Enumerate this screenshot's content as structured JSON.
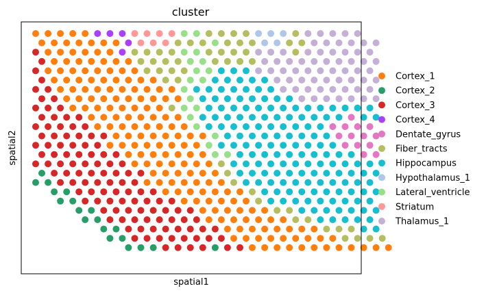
{
  "chart_data": {
    "type": "scatter",
    "title": "cluster",
    "xlabel": "spatial1",
    "ylabel": "spatial2",
    "ticks": false,
    "grid": false,
    "legend_placement": "right",
    "categories": [
      {
        "name": "Cortex_1",
        "color": "#ff7f0e"
      },
      {
        "name": "Cortex_2",
        "color": "#279e68"
      },
      {
        "name": "Cortex_3",
        "color": "#d62728"
      },
      {
        "name": "Cortex_4",
        "color": "#aa40fc"
      },
      {
        "name": "Dentate_gyrus",
        "color": "#e377c2"
      },
      {
        "name": "Fiber_tracts",
        "color": "#b5bd61"
      },
      {
        "name": "Hippocampus",
        "color": "#17becf"
      },
      {
        "name": "Hypothalamus_1",
        "color": "#aec7e8"
      },
      {
        "name": "Lateral_ventricle",
        "color": "#98df8a"
      },
      {
        "name": "Striatum",
        "color": "#ff9896"
      },
      {
        "name": "Thalamus_1",
        "color": "#c5b0d5"
      }
    ],
    "row_column_range": [
      0,
      25
    ],
    "rows": [
      {
        "row": 0,
        "col_start": 0,
        "labels": "AAAAADDDJJJJIIFFFFHHHFKKKKK"
      },
      {
        "row": 1,
        "col_start": 0,
        "labels": "AAAAAAADJJJFFFIFFFHHFFKKKKKK"
      },
      {
        "row": 2,
        "col_start": 0,
        "labels": "CAAAAAADFFFFIIFFFFKKKFKKKKKK"
      },
      {
        "row": 3,
        "col_start": 0,
        "labels": "CAAAAAAAFFFFIIFFFFKKKKKKKKKK"
      },
      {
        "row": 4,
        "col_start": 0,
        "labels": "CAAAAAAAAFFFFIIGGGKKKKKKKKKK"
      },
      {
        "row": 5,
        "col_start": 0,
        "labels": "CAAAAAAAAAFFIIGGGGGKKKKKKKKK"
      },
      {
        "row": 6,
        "col_start": 0,
        "labels": "CCAAAAAAAAAAIGGGGGGGKKKKKKKK"
      },
      {
        "row": 7,
        "col_start": 0,
        "labels": "CCAAAAAAAAAAIGGGGGGGGKKKKKKK"
      },
      {
        "row": 8,
        "col_start": 0,
        "labels": "CCCAAAAAAAAFIIGGGGGGGGGGGGGG"
      },
      {
        "row": 9,
        "col_start": 0,
        "labels": "CCCCAAAAAAAAIGGGGGGGGGGGGEGG"
      },
      {
        "row": 10,
        "col_start": 0,
        "labels": "CCCCCAAAAAAAAIGGGGGGGGGGEEEE"
      },
      {
        "row": 11,
        "col_start": 0,
        "labels": "CCCCCCAAAAAAAAIGGGGGGGGGEEEE"
      },
      {
        "row": 12,
        "col_start": 0,
        "labels": "CCCCCCAAAAAAAAIGGGGGGGGGGEEE"
      },
      {
        "row": 13,
        "col_start": 0,
        "labels": "CCCCCCCAAAAAAAIIGGGGGGGGGGEE"
      },
      {
        "row": 14,
        "col_start": 0,
        "labels": "CCCCCCCCAAAAAAAFGGGGGGGGGGGG"
      },
      {
        "row": 15,
        "col_start": 0,
        "labels": "BCCCCCCCCAAAAAAFGGGGGGGGGGGG"
      },
      {
        "row": 16,
        "col_start": 0,
        "labels": "BBCCCCCCCAAAAAAAFGGGGGGGGGGG"
      },
      {
        "row": 17,
        "col_start": 1,
        "labels": "BBCCCCCCCAAAAAAAFGGGGGGGGGG"
      },
      {
        "row": 18,
        "col_start": 2,
        "labels": "BBCCCCCCCCAAAAAAFGGGGGGGGG"
      },
      {
        "row": 19,
        "col_start": 3,
        "labels": "BBCCCCCCCCAAAAAAFFGGGGGGG"
      },
      {
        "row": 20,
        "col_start": 4,
        "labels": "BBCCCCCCCCAAAAAAAFFGGGGG"
      },
      {
        "row": 21,
        "col_start": 5,
        "labels": "BBCCCCCCCCAAAAAAAAFFFGG"
      },
      {
        "row": 22,
        "col_start": 6,
        "labels": "BBCCCCCCCCAAAAAAAAAFFFF"
      },
      {
        "row": 23,
        "col_start": 7,
        "labels": "BBBCCCCBCCAAAAAAAAAAAA"
      }
    ]
  }
}
